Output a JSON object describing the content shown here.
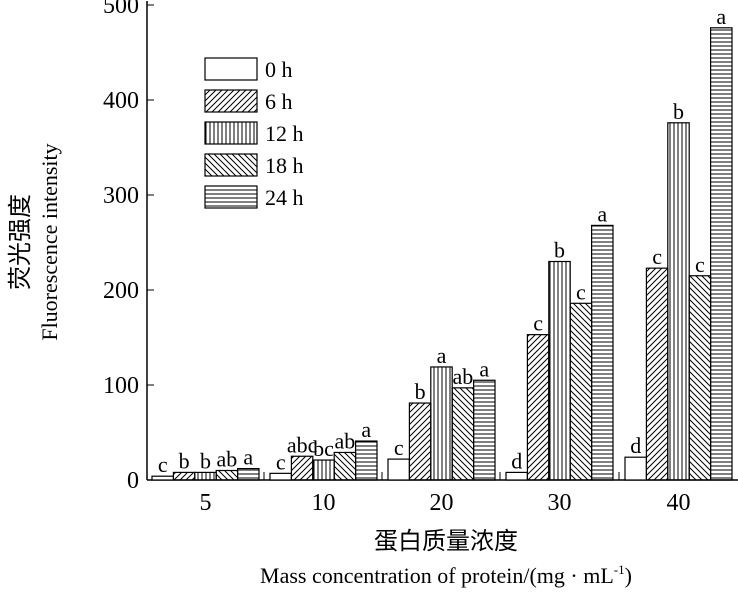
{
  "chart_data": {
    "type": "bar",
    "title": "",
    "ylabel_cn": "荧光强度",
    "ylabel": "Fluorescence intensity",
    "xlabel_cn": "蛋白质量浓度",
    "xlabel": "Mass concentration of protein/(mg · mL",
    "xlabel_sup": "-1",
    "xlabel_end": ")",
    "ylim": [
      0,
      500
    ],
    "yticks": [
      "0",
      "100",
      "200",
      "300",
      "400",
      "500"
    ],
    "categories": [
      "5",
      "10",
      "20",
      "30",
      "40"
    ],
    "legend_position": "top-left",
    "series": [
      {
        "name": "0 h",
        "pattern": "empty",
        "values": [
          4,
          7,
          22,
          8,
          24
        ],
        "letters": [
          "c",
          "c",
          "c",
          "d",
          "d"
        ]
      },
      {
        "name": "6 h",
        "pattern": "diag-right",
        "values": [
          8,
          25,
          81,
          153,
          223
        ],
        "letters": [
          "b",
          "abc",
          "b",
          "c",
          "c"
        ]
      },
      {
        "name": "12 h",
        "pattern": "vertical",
        "values": [
          8,
          21,
          119,
          230,
          376
        ],
        "letters": [
          "b",
          "bc",
          "a",
          "b",
          "b"
        ]
      },
      {
        "name": "18 h",
        "pattern": "diag-left",
        "values": [
          10,
          29,
          97,
          186,
          215
        ],
        "letters": [
          "ab",
          "ab",
          "ab",
          "c",
          "c"
        ]
      },
      {
        "name": "24 h",
        "pattern": "horizontal",
        "values": [
          12,
          41,
          105,
          268,
          476
        ],
        "letters": [
          "a",
          "a",
          "a",
          "a",
          "a"
        ]
      }
    ]
  }
}
